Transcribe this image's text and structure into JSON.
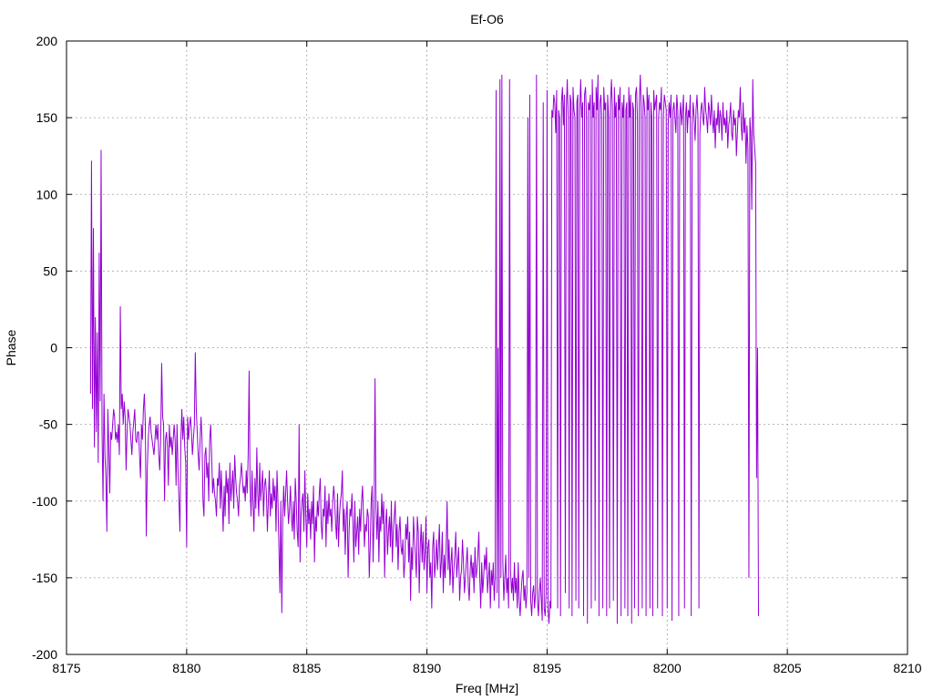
{
  "chart_data": {
    "type": "line",
    "title": "Ef-O6",
    "xlabel": "Freq [MHz]",
    "ylabel": "Phase",
    "xlim": [
      8175,
      8210
    ],
    "ylim": [
      -200,
      200
    ],
    "xticks": [
      8175,
      8180,
      8185,
      8190,
      8195,
      8200,
      8205,
      8210
    ],
    "yticks": [
      -200,
      -150,
      -100,
      -50,
      0,
      50,
      100,
      150,
      200
    ],
    "xtick_labels": [
      "8175",
      "8180",
      "8185",
      "8190",
      "8195",
      "8200",
      "8205",
      "8210"
    ],
    "ytick_labels": [
      "-200",
      "-150",
      "-100",
      "-50",
      "0",
      "50",
      "100",
      "150",
      "200"
    ],
    "grid": true,
    "line_color": "#9400d3",
    "series": [
      {
        "x_start": 8176.0,
        "x_step": 0.04,
        "values": [
          -30,
          122,
          -40,
          78,
          -65,
          20,
          -55,
          10,
          -75,
          62,
          -35,
          129,
          -55,
          -100,
          -30,
          -70,
          -85,
          -120,
          -40,
          -65,
          -95,
          -55,
          -60,
          -50,
          -40,
          -45,
          -60,
          -55,
          -62,
          -50,
          -70,
          27,
          -40,
          -30,
          -50,
          -35,
          -45,
          -80,
          -55,
          -40,
          -45,
          -50,
          -60,
          -70,
          -55,
          -48,
          -40,
          -60,
          -62,
          -55,
          -55,
          -70,
          -85,
          -50,
          -60,
          -40,
          -30,
          -50,
          -123,
          -80,
          -60,
          -50,
          -45,
          -55,
          -60,
          -65,
          -70,
          -60,
          -50,
          -60,
          -50,
          -70,
          -80,
          -60,
          -10,
          -45,
          -50,
          -100,
          -60,
          -55,
          -65,
          -90,
          -50,
          -65,
          -58,
          -70,
          -60,
          -50,
          -60,
          -90,
          -50,
          -80,
          -100,
          -120,
          -60,
          -40,
          -60,
          -45,
          -65,
          -75,
          -130,
          -45,
          -60,
          -50,
          -45,
          -55,
          -70,
          -60,
          -50,
          -3,
          -40,
          -55,
          -70,
          -80,
          -60,
          -45,
          -60,
          -100,
          -110,
          -70,
          -65,
          -85,
          -75,
          -100,
          -60,
          -50,
          -70,
          -95,
          -85,
          -95,
          -100,
          -110,
          -85,
          -90,
          -75,
          -105,
          -80,
          -100,
          -120,
          -90,
          -110,
          -80,
          -95,
          -85,
          -115,
          -75,
          -100,
          -90,
          -80,
          -105,
          -70,
          -85,
          -95,
          -100,
          -110,
          -90,
          -85,
          -75,
          -85,
          -95,
          -90,
          -100,
          -80,
          -95,
          -70,
          -15,
          -90,
          -110,
          -80,
          -100,
          -120,
          -85,
          -105,
          -65,
          -95,
          -110,
          -75,
          -100,
          -90,
          -80,
          -110,
          -90,
          -85,
          -95,
          -120,
          -100,
          -80,
          -110,
          -95,
          -105,
          -85,
          -100,
          -90,
          -120,
          -80,
          -100,
          -130,
          -160,
          -100,
          -173,
          -110,
          -90,
          -110,
          -95,
          -80,
          -100,
          -115,
          -105,
          -90,
          -110,
          -120,
          -100,
          -125,
          -85,
          -100,
          -120,
          -130,
          -50,
          -140,
          -110,
          -100,
          -95,
          -120,
          -80,
          -110,
          -130,
          -95,
          -115,
          -105,
          -125,
          -100,
          -115,
          -90,
          -140,
          -110,
          -120,
          -100,
          -110,
          -95,
          -85,
          -115,
          -125,
          -105,
          -110,
          -90,
          -130,
          -100,
          -115,
          -95,
          -110,
          -105,
          -120,
          -100,
          -90,
          -100,
          -115,
          -125,
          -95,
          -130,
          -110,
          -100,
          -95,
          -80,
          -120,
          -105,
          -135,
          -110,
          -100,
          -150,
          -120,
          -105,
          -110,
          -95,
          -115,
          -140,
          -100,
          -130,
          -120,
          -110,
          -135,
          -105,
          -120,
          -100,
          -90,
          -110,
          -130,
          -115,
          -120,
          -105,
          -110,
          -150,
          -130,
          -100,
          -90,
          -140,
          -110,
          -20,
          -105,
          -125,
          -100,
          -140,
          -110,
          -120,
          -95,
          -115,
          -100,
          -150,
          -115,
          -105,
          -135,
          -120,
          -110,
          -130,
          -100,
          -140,
          -120,
          -110,
          -100,
          -130,
          -115,
          -145,
          -120,
          -110,
          -130,
          -135,
          -125,
          -150,
          -140,
          -115,
          -125,
          -110,
          -140,
          -120,
          -165,
          -130,
          -145,
          -110,
          -125,
          -135,
          -150,
          -110,
          -120,
          -160,
          -130,
          -115,
          -140,
          -120,
          -145,
          -135,
          -110,
          -160,
          -130,
          -125,
          -150,
          -140,
          -170,
          -130,
          -120,
          -150,
          -140,
          -125,
          -145,
          -130,
          -115,
          -150,
          -140,
          -120,
          -160,
          -135,
          -150,
          -130,
          -100,
          -145,
          -125,
          -155,
          -140,
          -130,
          -160,
          -145,
          -135,
          -120,
          -150,
          -140,
          -130,
          -165,
          -150,
          -145,
          -125,
          -140,
          -160,
          -150,
          -140,
          -130,
          -155,
          -165,
          -145,
          -135,
          -150,
          -140,
          -160,
          -130,
          -150,
          -145,
          -135,
          -120,
          -150,
          -170,
          -140,
          -160,
          -150,
          -135,
          -145,
          -130,
          -160,
          -150,
          -140,
          -170,
          -145,
          -155,
          -140,
          -165,
          -150,
          168,
          -160,
          0,
          -170,
          175,
          -150,
          178,
          -140,
          -165,
          -150,
          -135,
          -160,
          -150,
          -170,
          175,
          -145,
          -160,
          -150,
          -165,
          -140,
          -160,
          -150,
          -170,
          -140,
          -165,
          -175,
          -160,
          -150,
          -145,
          -165,
          -155,
          -170,
          -160,
          150,
          -150,
          165,
          -165,
          -175,
          -160,
          -155,
          -170,
          -160,
          178,
          -165,
          -175,
          -160,
          -150,
          -165,
          -178,
          160,
          -170,
          -175,
          -160,
          168,
          -170,
          -180,
          -165,
          -170,
          155,
          150,
          165,
          160,
          140,
          168,
          -170,
          155,
          150,
          -175,
          160,
          170,
          145,
          165,
          -160,
          155,
          175,
          150,
          -170,
          165,
          160,
          -175,
          170,
          155,
          150,
          -165,
          160,
          165,
          -170,
          155,
          175,
          150,
          160,
          -175,
          165,
          170,
          150,
          -180,
          160,
          155,
          165,
          -170,
          175,
          150,
          160,
          -165,
          170,
          155,
          178,
          -175,
          160,
          165,
          150,
          -170,
          170,
          155,
          160,
          -175,
          165,
          150,
          -170,
          160,
          175,
          155,
          -165,
          170,
          150,
          160,
          -180,
          165,
          155,
          170,
          -175,
          160,
          150,
          165,
          -170,
          155,
          160,
          -175,
          170,
          150,
          165,
          -180,
          160,
          155,
          -170,
          165,
          170,
          150,
          -175,
          160,
          178,
          155,
          -170,
          165,
          160,
          150,
          -175,
          170,
          155,
          165,
          -170,
          160,
          150,
          -175,
          168,
          155,
          160,
          165,
          -170,
          150,
          160,
          155,
          170,
          -175,
          150,
          165,
          160,
          155,
          -170,
          145,
          160,
          150,
          165,
          -178,
          155,
          160,
          150,
          140,
          165,
          155,
          -175,
          150,
          160,
          145,
          155,
          165,
          -170,
          150,
          160,
          140,
          155,
          150,
          165,
          -175,
          145,
          160,
          150,
          135,
          155,
          165,
          150,
          -170,
          140,
          155,
          160,
          150,
          145,
          170,
          155,
          150,
          140,
          160,
          155,
          145,
          165,
          150,
          140,
          155,
          130,
          150,
          145,
          160,
          140,
          155,
          150,
          135,
          160,
          145,
          150,
          140,
          155,
          130,
          145,
          150,
          160,
          140,
          135,
          155,
          145,
          150,
          125,
          140,
          155,
          150,
          170,
          145,
          135,
          160,
          140,
          150,
          120,
          145,
          130,
          -150,
          150,
          140,
          90,
          175,
          140,
          130,
          120,
          -85,
          0,
          -175
        ]
      }
    ]
  }
}
